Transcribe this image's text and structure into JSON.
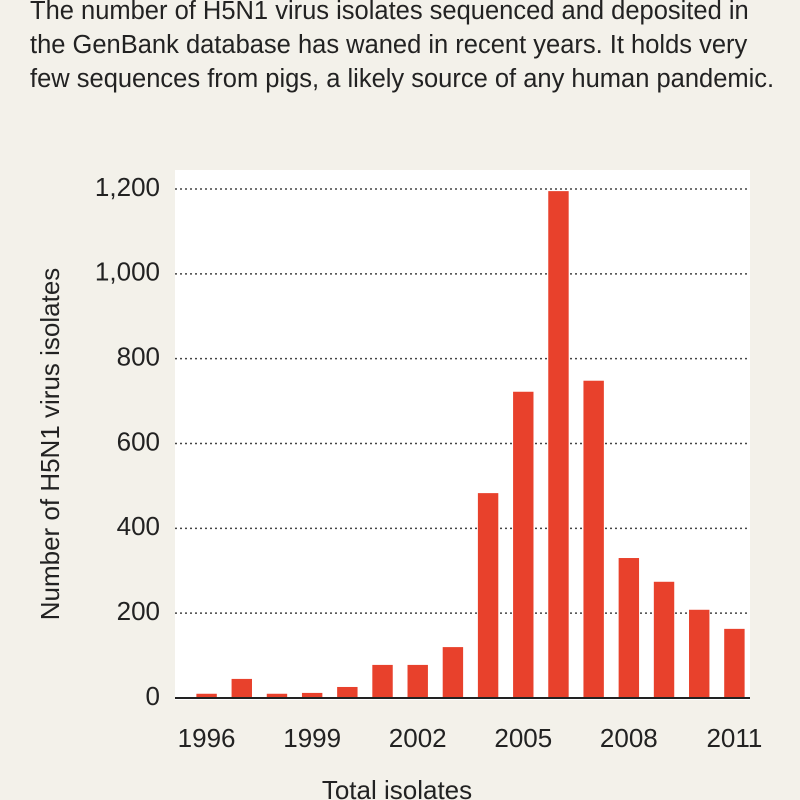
{
  "chart_data": {
    "type": "bar",
    "description": "The number of H5N1 virus isolates sequenced and deposited in the GenBank database has waned in recent years. It holds very few sequences from pigs, a likely source of any human pandemic.",
    "y_label": "Number of H5N1 virus isolates",
    "x_label": "Total isolates",
    "categories": [
      "1996",
      null,
      null,
      "1999",
      null,
      null,
      "2002",
      null,
      null,
      "2005",
      null,
      null,
      "2008",
      null,
      null,
      "2011"
    ],
    "values": [
      10,
      45,
      10,
      12,
      26,
      78,
      78,
      120,
      483,
      722,
      1195,
      748,
      330,
      274,
      208,
      163
    ],
    "color": "#e8412c",
    "ylim": [
      0,
      1200
    ],
    "yticks": [
      0,
      200,
      400,
      600,
      800,
      {
        "value": 1000,
        "label": "1,000"
      },
      {
        "value": 1200,
        "label": "1,200"
      }
    ],
    "grid": true
  }
}
